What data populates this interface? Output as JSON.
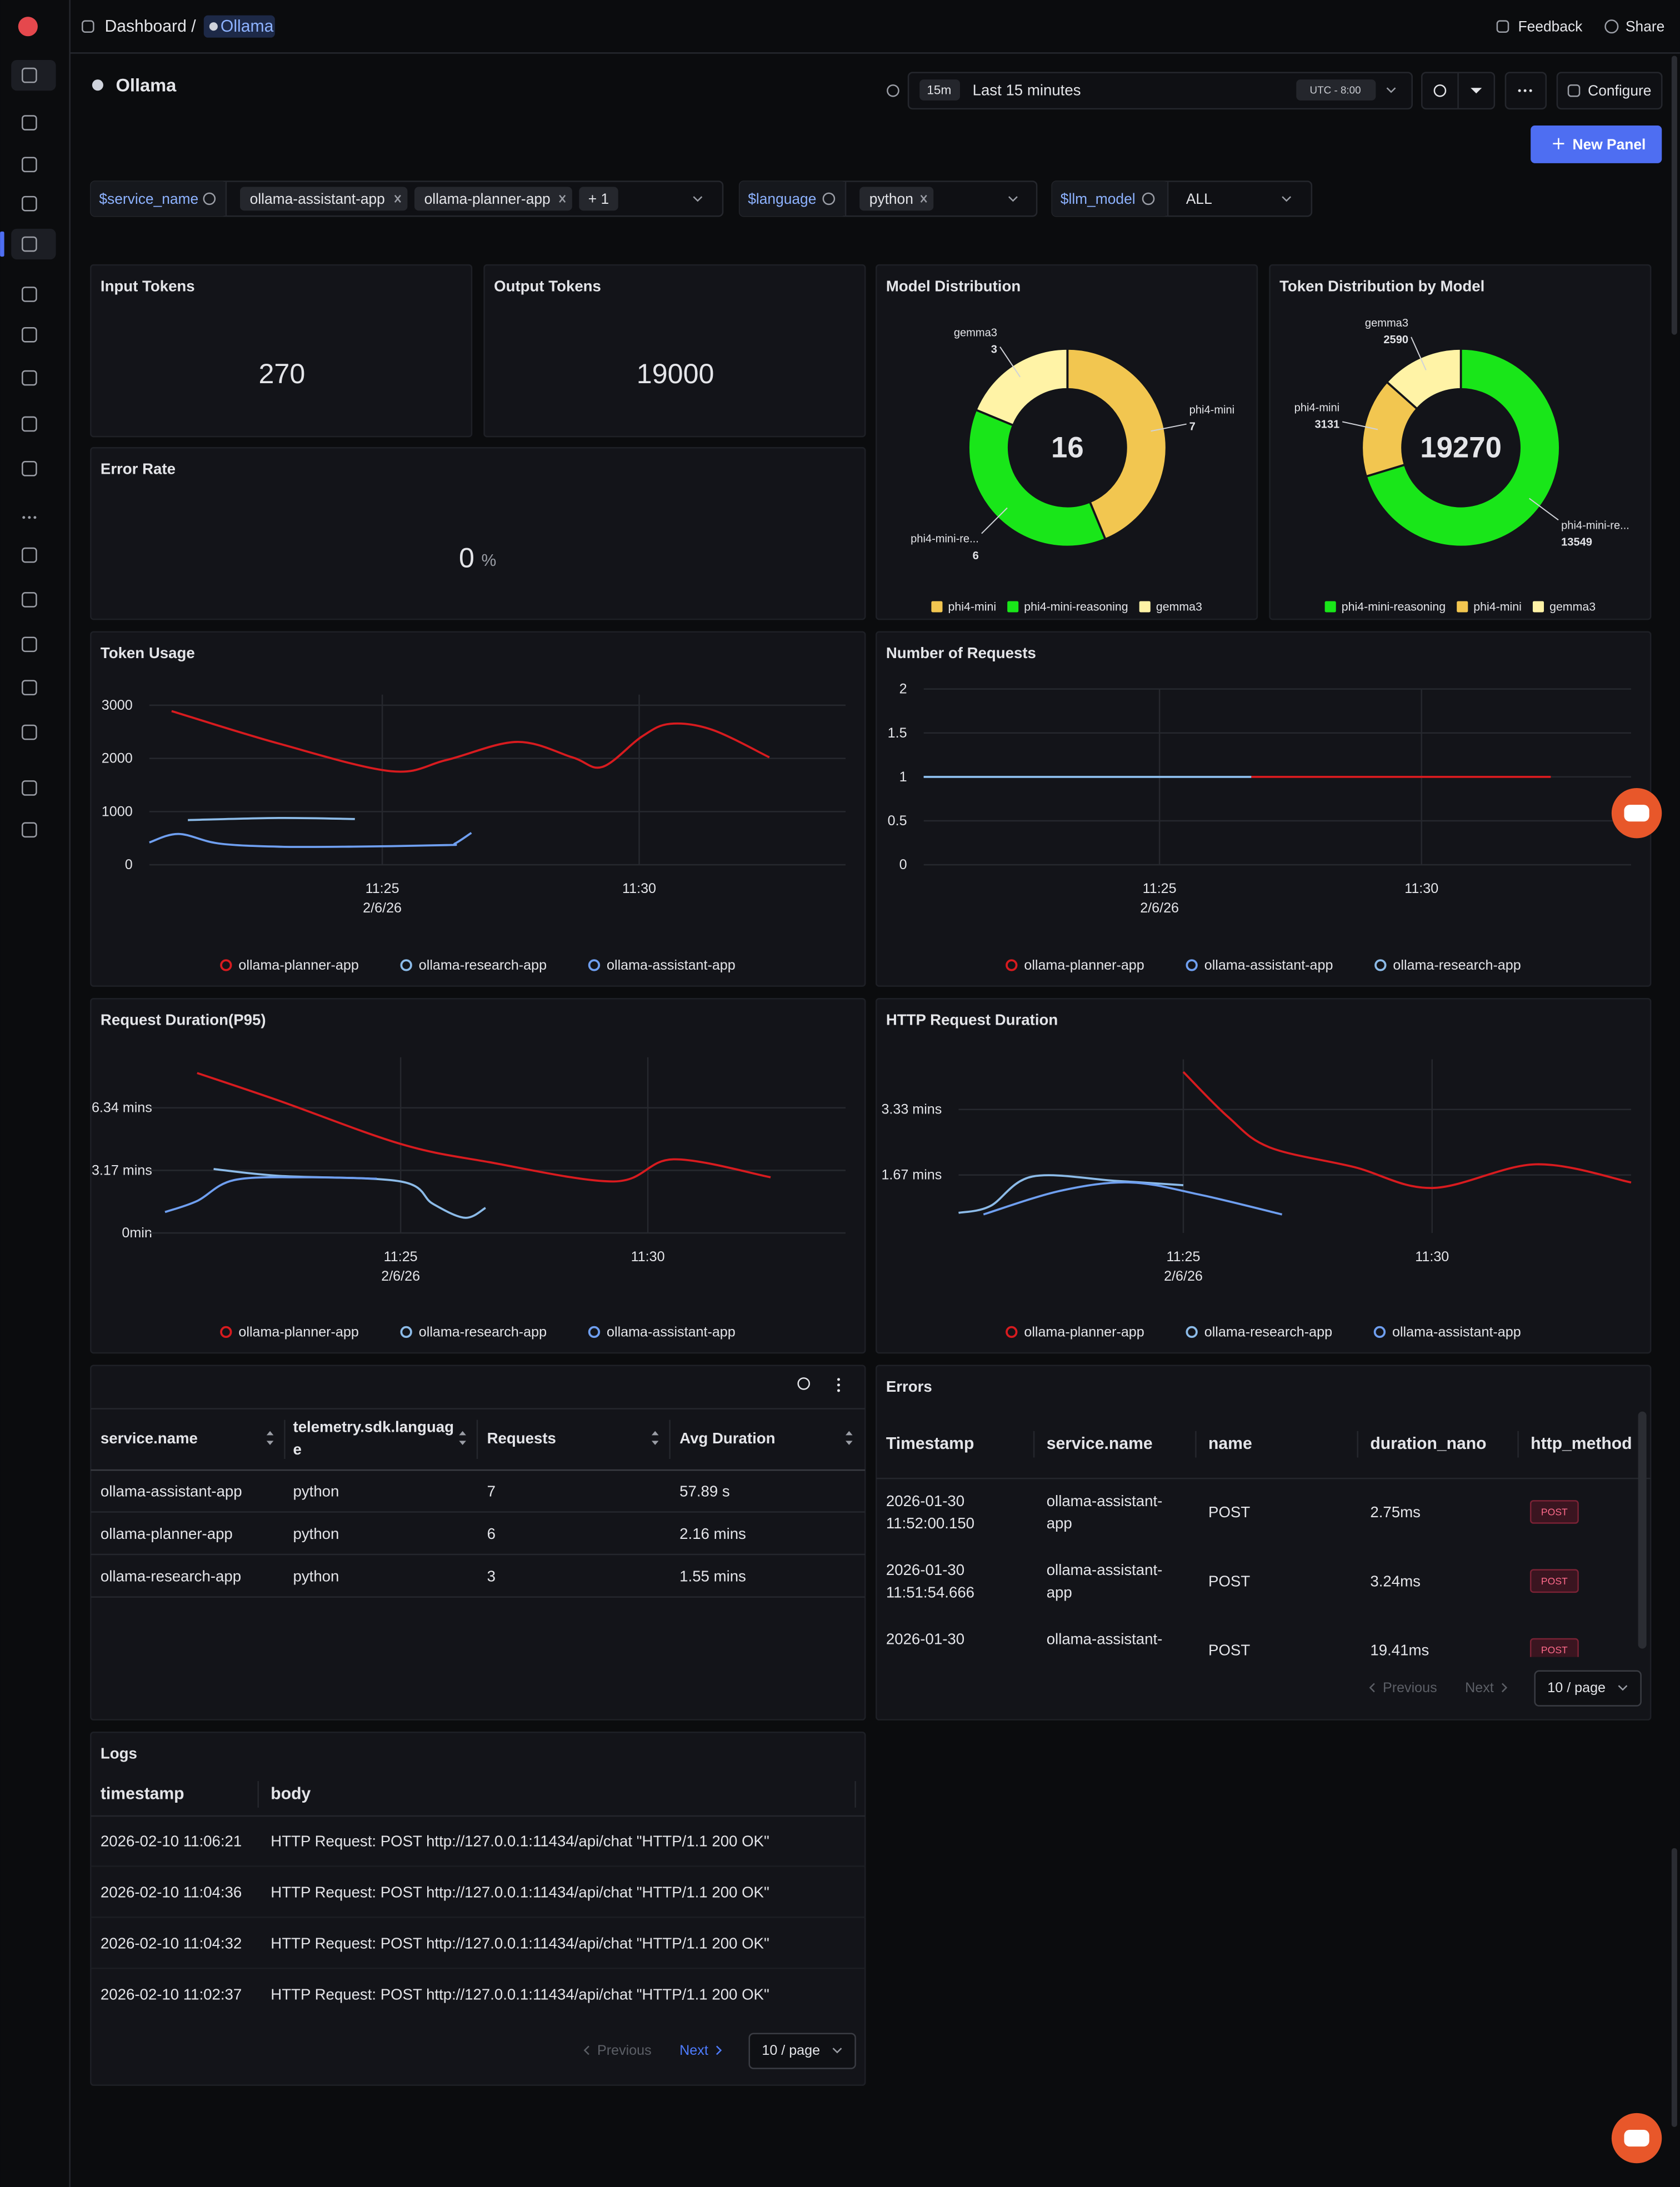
{
  "header": {
    "breadcrumb": "Dashboard /",
    "current": "Ollama",
    "feedback": "Feedback",
    "share": "Share"
  },
  "toolbar": {
    "title": "Ollama",
    "time_short": "15m",
    "time_range": "Last 15 minutes",
    "timezone": "UTC - 8:00",
    "configure": "Configure",
    "new_panel": "New Panel"
  },
  "filters": [
    {
      "name": "$service_name",
      "chips": [
        "ollama-assistant-app",
        "ollama-planner-app",
        "+ 1"
      ]
    },
    {
      "name": "$language",
      "chips": [
        "python"
      ]
    },
    {
      "name": "$llm_model",
      "value": "ALL"
    }
  ],
  "stats": [
    {
      "title": "Input Tokens",
      "value": 270
    },
    {
      "title": "Output Tokens",
      "value": 19000
    },
    {
      "title": "Error Rate",
      "value": 0,
      "unit": "%"
    }
  ],
  "chart_data": [
    {
      "type": "pie",
      "title": "Model Distribution",
      "total": 16,
      "categories": [
        "phi4-mini",
        "phi4-mini-reasoning",
        "gemma3"
      ],
      "callout_labels": [
        "phi4-mini",
        "phi4-mini-re...",
        "gemma3"
      ],
      "values": [
        7,
        6,
        3
      ],
      "colors": [
        "#f2c650",
        "#19e619",
        "#fff3a6"
      ]
    },
    {
      "type": "pie",
      "title": "Token Distribution by Model",
      "total": 19270,
      "categories": [
        "phi4-mini-reasoning",
        "phi4-mini",
        "gemma3"
      ],
      "callout_labels": [
        "phi4-mini-re...",
        "phi4-mini",
        "gemma3"
      ],
      "values": [
        13549,
        3131,
        2590
      ],
      "colors": [
        "#19e619",
        "#f2c650",
        "#fff3a6"
      ]
    },
    {
      "type": "line",
      "title": "Token Usage",
      "grid": true,
      "xlim": [
        "11:20:28",
        "11:34:01"
      ],
      "xticks": [
        "11:25",
        "11:30"
      ],
      "x_date": "2/6/26",
      "ylim": [
        0,
        3200
      ],
      "yticks": [
        0,
        1000,
        2000,
        3000
      ],
      "series": [
        {
          "name": "ollama-planner-app",
          "color": "#d81b1f",
          "x": [
            "11:20:54",
            "11:22:59",
            "11:25:10",
            "11:26:15",
            "11:27:37",
            "11:28:42",
            "11:29:17",
            "11:30:03",
            "11:30:36",
            "11:31:25",
            "11:32:32"
          ],
          "values": [
            2890,
            2280,
            1760,
            1970,
            2310,
            2020,
            1840,
            2410,
            2650,
            2540,
            2020
          ]
        },
        {
          "name": "ollama-research-app",
          "color": "#8cbbe8",
          "x": [
            "11:21:13",
            "11:22:59",
            "11:24:28"
          ],
          "values": [
            840,
            880,
            860
          ]
        },
        {
          "name": "ollama-assistant-app",
          "color": "#6f9ff0",
          "x": [
            "11:20:28",
            "11:21:02",
            "11:21:49",
            "11:22:59",
            "11:24:21",
            "11:26:15",
            "11:26:25",
            "11:26:44"
          ],
          "values": [
            420,
            580,
            400,
            340,
            340,
            370,
            400,
            600
          ]
        }
      ]
    },
    {
      "type": "line",
      "title": "Number of Requests",
      "grid": true,
      "xlim": [
        "11:20:30",
        "11:34:00"
      ],
      "xticks": [
        "11:25",
        "11:30"
      ],
      "x_date": "2/6/26",
      "ylim": [
        0,
        2
      ],
      "yticks": [
        0,
        0.5,
        1,
        1.5,
        2
      ],
      "series": [
        {
          "name": "ollama-planner-app",
          "color": "#d81b1f",
          "x": [
            "11:26:45",
            "11:29:30",
            "11:32:28"
          ],
          "values": [
            1,
            1,
            1
          ]
        },
        {
          "name": "ollama-assistant-app",
          "color": "#6f9ff0",
          "x": [
            "11:20:30",
            "11:23:30",
            "11:26:45"
          ],
          "values": [
            1,
            1,
            1
          ]
        },
        {
          "name": "ollama-research-app",
          "color": "#8cbbe8",
          "x": [
            "11:20:30",
            "11:23:30",
            "11:26:45"
          ],
          "values": [
            1,
            1,
            1
          ]
        }
      ]
    },
    {
      "type": "line",
      "title": "Request Duration(P95)",
      "grid": true,
      "xlim": [
        "11:19:55",
        "11:34:00"
      ],
      "xticks": [
        "11:25",
        "11:30"
      ],
      "x_date": "2/6/26",
      "ylim": [
        0,
        8.9
      ],
      "yticks": [
        {
          "value": 0,
          "label": "0min"
        },
        {
          "value": 3.17,
          "label": "3.17 mins"
        },
        {
          "value": 6.34,
          "label": "6.34 mins"
        }
      ],
      "series": [
        {
          "name": "ollama-planner-app",
          "color": "#d81b1f",
          "x": [
            "11:20:53",
            "11:22:33",
            "11:25:00",
            "11:26:47",
            "11:29:19",
            "11:30:31",
            "11:32:29"
          ],
          "values": [
            8.1,
            6.69,
            4.51,
            3.59,
            2.61,
            3.73,
            2.82
          ]
        },
        {
          "name": "ollama-research-app",
          "color": "#8cbbe8",
          "x": [
            "11:21:13",
            "11:22:33",
            "11:25:00",
            "11:25:39",
            "11:26:18",
            "11:26:43"
          ],
          "values": [
            3.24,
            2.89,
            2.61,
            1.48,
            0.77,
            1.27
          ]
        },
        {
          "name": "ollama-assistant-app",
          "color": "#6f9ff0",
          "x": [
            "11:20:14",
            "11:20:53",
            "11:21:38",
            "11:23:06",
            "11:24:31"
          ],
          "values": [
            1.06,
            1.62,
            2.68,
            2.82,
            2.75
          ]
        }
      ]
    },
    {
      "type": "line",
      "title": "HTTP Request Duration",
      "grid": true,
      "xlim": [
        "11:20:29",
        "11:34:00"
      ],
      "xticks": [
        "11:25",
        "11:30"
      ],
      "x_date": "2/6/26",
      "ylim": [
        0.2,
        4.6
      ],
      "yticks": [
        {
          "value": 1.67,
          "label": "1.67 mins"
        },
        {
          "value": 3.33,
          "label": "3.33 mins"
        }
      ],
      "series": [
        {
          "name": "ollama-planner-app",
          "color": "#d81b1f",
          "x": [
            "11:25:00",
            "11:25:54",
            "11:26:44",
            "11:28:26",
            "11:30:00",
            "11:32:05",
            "11:34:00"
          ],
          "values": [
            4.28,
            3.14,
            2.37,
            1.87,
            1.34,
            1.94,
            1.48
          ]
        },
        {
          "name": "ollama-research-app",
          "color": "#8cbbe8",
          "x": [
            "11:20:29",
            "11:21:07",
            "11:21:58",
            "11:23:39",
            "11:25:00"
          ],
          "values": [
            0.71,
            0.88,
            1.63,
            1.52,
            1.41
          ]
        },
        {
          "name": "ollama-assistant-app",
          "color": "#6f9ff0",
          "x": [
            "11:20:59",
            "11:22:32",
            "11:23:56",
            "11:25:20",
            "11:26:59"
          ],
          "values": [
            0.67,
            1.27,
            1.48,
            1.17,
            0.67
          ]
        }
      ]
    }
  ],
  "service_table": {
    "columns": [
      "service.name",
      [
        "telemetry.sdk.languag",
        "e"
      ],
      "Requests",
      "Avg Duration"
    ],
    "rows": [
      [
        "ollama-assistant-app",
        "python",
        7,
        "57.89 s"
      ],
      [
        "ollama-planner-app",
        "python",
        6,
        "2.16 mins"
      ],
      [
        "ollama-research-app",
        "python",
        3,
        "1.55 mins"
      ]
    ]
  },
  "errors_table": {
    "title": "Errors",
    "columns": [
      "Timestamp",
      "service.name",
      "name",
      "duration_nano",
      "http_method"
    ],
    "rows": [
      [
        [
          "2026-01-30",
          "11:52:00.150"
        ],
        [
          "ollama-assistant-",
          "app"
        ],
        "POST",
        "2.75ms",
        "POST"
      ],
      [
        [
          "2026-01-30",
          "11:51:54.666"
        ],
        [
          "ollama-assistant-",
          "app"
        ],
        "POST",
        "3.24ms",
        "POST"
      ],
      [
        [
          "2026-01-30"
        ],
        [
          "ollama-assistant-"
        ],
        "POST",
        "19.41ms",
        "POST"
      ]
    ],
    "pagination": {
      "previous": "Previous",
      "next": "Next",
      "page_size": "10 / page"
    }
  },
  "logs_table": {
    "title": "Logs",
    "columns": [
      "timestamp",
      "body"
    ],
    "rows": [
      [
        "2026-02-10 11:06:21",
        "HTTP Request: POST http://127.0.0.1:11434/api/chat \"HTTP/1.1 200 OK\""
      ],
      [
        "2026-02-10 11:04:36",
        "HTTP Request: POST http://127.0.0.1:11434/api/chat \"HTTP/1.1 200 OK\""
      ],
      [
        "2026-02-10 11:04:32",
        "HTTP Request: POST http://127.0.0.1:11434/api/chat \"HTTP/1.1 200 OK\""
      ],
      [
        "2026-02-10 11:02:37",
        "HTTP Request: POST http://127.0.0.1:11434/api/chat \"HTTP/1.1 200 OK\""
      ]
    ],
    "pagination": {
      "previous": "Previous",
      "next": "Next",
      "page_size": "10 / page"
    }
  }
}
